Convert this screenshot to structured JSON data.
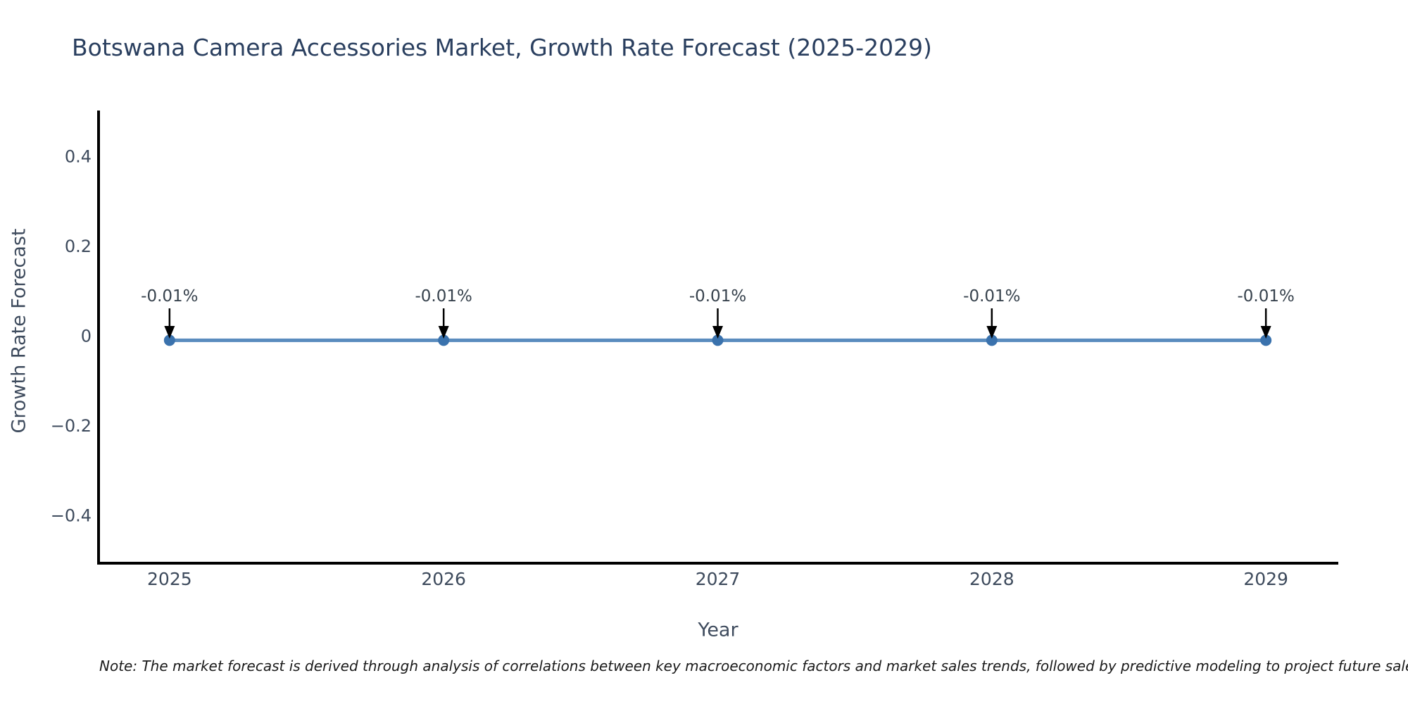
{
  "chart_data": {
    "type": "line",
    "title": "Botswana Camera Accessories Market, Growth Rate Forecast (2025-2029)",
    "xlabel": "Year",
    "ylabel": "Growth Rate Forecast",
    "x": [
      2025,
      2026,
      2027,
      2028,
      2029
    ],
    "values": [
      -0.01,
      -0.01,
      -0.01,
      -0.01,
      -0.01
    ],
    "point_labels": [
      "-0.01%",
      "-0.01%",
      "-0.01%",
      "-0.01%",
      "-0.01%"
    ],
    "xtick_labels": [
      "2025",
      "2026",
      "2027",
      "2028",
      "2029"
    ],
    "yticks": {
      "values": [
        0.4,
        0.2,
        0,
        -0.2,
        -0.4
      ],
      "labels": [
        "0.4",
        "0.2",
        "0",
        "−0.2",
        "−0.4"
      ]
    },
    "xlim": [
      2024.741,
      2029.259
    ],
    "ylim": [
      -0.5065,
      0.5018
    ],
    "grid": false,
    "legend_position": "none",
    "colors": {
      "line": "#5a8cbe",
      "marker": "#3a72ad",
      "arrow": "#000000",
      "spine": "#000000"
    }
  },
  "note": {
    "text": "Note: The market forecast is derived through analysis of correlations between key macroeconomic factors and market sales trends, followed by predictive modeling to project future sales."
  }
}
